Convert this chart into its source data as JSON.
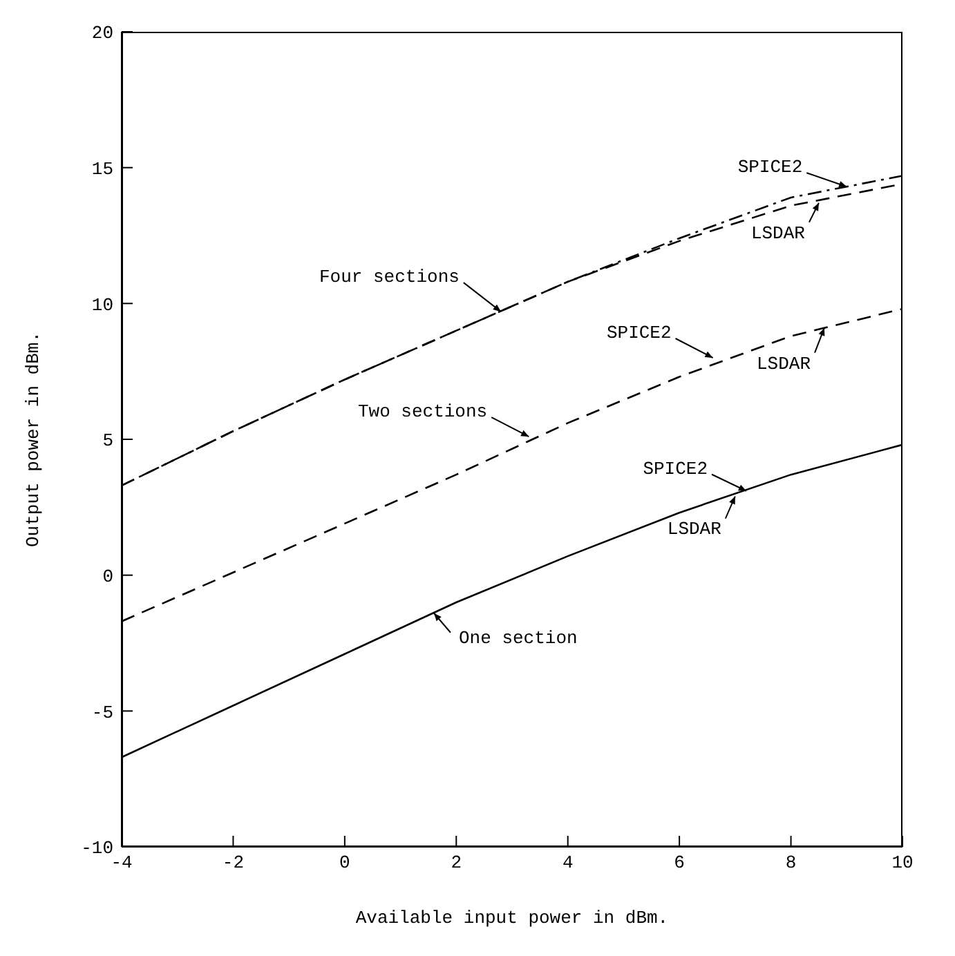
{
  "chart_data": {
    "type": "line",
    "xlabel": "Available input power in dBm.",
    "ylabel": "Output power in dBm.",
    "x": [
      -4,
      -2,
      0,
      2,
      4,
      6,
      8,
      10
    ],
    "series": [
      {
        "color": "#000000",
        "line_style": "solid",
        "values": [
          -6.7,
          -4.8,
          -2.9,
          -1.0,
          0.7,
          2.3,
          3.7,
          4.8
        ]
      },
      {
        "color": "#000000",
        "line_style": "dashed",
        "values": [
          -1.7,
          0.1,
          1.9,
          3.7,
          5.6,
          7.3,
          8.8,
          9.8
        ]
      },
      {
        "color": "#000000",
        "line_style": "dotted",
        "values": [
          3.3,
          5.3,
          7.2,
          9.0,
          10.8,
          12.4,
          13.9,
          14.7
        ]
      },
      {
        "color": "#000000",
        "line_style": "dashed",
        "values": [
          3.3,
          5.3,
          7.2,
          9.0,
          10.8,
          12.3,
          13.6,
          14.4
        ]
      }
    ],
    "xlim": [
      -4,
      10
    ],
    "xticks": [
      -4,
      -2,
      0,
      2,
      4,
      6,
      8,
      10
    ],
    "ylim": [
      -10,
      20
    ],
    "yticks": [
      -10,
      -5,
      0,
      5,
      10,
      15,
      20
    ],
    "grid": false,
    "legend": false,
    "marker": "none",
    "annotations": [
      {
        "text": "Four sections",
        "x": 2.8,
        "y": 9.7
      },
      {
        "text": "Two sections",
        "x": 3.3,
        "y": 5.1
      },
      {
        "text": "One section",
        "x": 1.6,
        "y": -1.4
      },
      {
        "text": "SPICE2",
        "x": 9.0,
        "y": 14.3
      },
      {
        "text": "LSDAR",
        "x": 8.5,
        "y": 13.7
      },
      {
        "text": "SPICE2",
        "x": 6.6,
        "y": 8.0
      },
      {
        "text": "LSDAR",
        "x": 8.6,
        "y": 9.1
      },
      {
        "text": "SPICE2",
        "x": 7.2,
        "y": 3.1
      },
      {
        "text": "LSDAR",
        "x": 7.0,
        "y": 2.9
      }
    ]
  }
}
